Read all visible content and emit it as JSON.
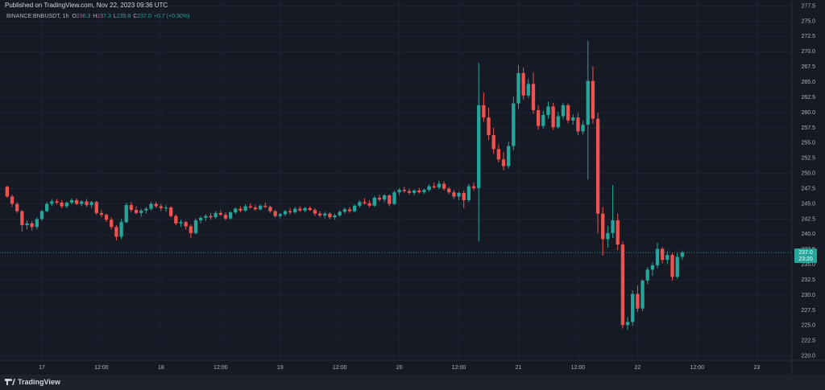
{
  "header": {
    "published": "Published on TradingView.com, Nov 22, 2023 09:36 UTC",
    "footer_brand": "TradingView"
  },
  "chart_data": {
    "type": "candlestick",
    "legend": {
      "symbol": "BINANCE:BNBUSDT, 1h",
      "items": [
        {
          "key": "O",
          "value": "236.3"
        },
        {
          "key": "H",
          "value": "237.3"
        },
        {
          "key": "L",
          "value": "235.8"
        },
        {
          "key": "C",
          "value": "237.0"
        }
      ],
      "change": "+0.7 (+0.30%)"
    },
    "up_color": "#26a69a",
    "down_color": "#ef5350",
    "grid": true,
    "ylim": [
      219.3,
      278.5
    ],
    "yticks": [
      {
        "value": 220,
        "label": "220.0"
      },
      222.5,
      {
        "value": 225,
        "label": "225.0"
      },
      227.5,
      {
        "value": 230,
        "label": "230.0"
      },
      232.5,
      {
        "value": 235,
        "label": "235.0"
      },
      237.5,
      {
        "value": 240,
        "label": "240.0"
      },
      242.5,
      {
        "value": 245,
        "label": "245.0"
      },
      247.5,
      {
        "value": 250,
        "label": "250.0"
      },
      252.5,
      {
        "value": 255,
        "label": "255.0"
      },
      257.5,
      {
        "value": 260,
        "label": "260.0"
      },
      262.5,
      {
        "value": 265,
        "label": "265.0"
      },
      267.5,
      {
        "value": 270,
        "label": "270.0"
      },
      272.5,
      {
        "value": 275,
        "label": "275.0"
      },
      277.5
    ],
    "xlim": [
      -1.44,
      158.1
    ],
    "xticks": [
      {
        "value": 7,
        "label": "17"
      },
      {
        "value": 19,
        "label": "12:00"
      },
      {
        "value": 31,
        "label": "18"
      },
      {
        "value": 43,
        "label": "12:00"
      },
      {
        "value": 55,
        "label": "19"
      },
      {
        "value": 67,
        "label": "12:00"
      },
      {
        "value": 79,
        "label": "20"
      },
      {
        "value": 91,
        "label": "12:00"
      },
      {
        "value": 103,
        "label": "21"
      },
      {
        "value": 115,
        "label": "12:00"
      },
      {
        "value": 127,
        "label": "22"
      },
      {
        "value": 139,
        "label": "12:00"
      },
      {
        "value": 151,
        "label": "23"
      }
    ],
    "last_price": {
      "value": 237,
      "label": "237.0"
    },
    "countdown": "23:20",
    "open": [
      247.8,
      246.2,
      245,
      243.8,
      241.5,
      241.8,
      241.2,
      242.5,
      243.8,
      245,
      245.4,
      245.2,
      244.6,
      245.2,
      245.6,
      245,
      245.4,
      244.8,
      245.3,
      243.5,
      243.2,
      242.4,
      241.2,
      239.6,
      242,
      244.8,
      244,
      243.5,
      243.9,
      244.2,
      245,
      244.6,
      244.3,
      244.4,
      243,
      241.8,
      242,
      241.3,
      240.2,
      242.3,
      242.7,
      243,
      242.8,
      243.5,
      243.2,
      242.6,
      243.6,
      244.2,
      243.9,
      244.6,
      244.4,
      244.1,
      244.7,
      244.5,
      243.8,
      243,
      243.3,
      243.8,
      243.6,
      244.2,
      243.9,
      244.3,
      244,
      243.4,
      243.1,
      243.4,
      242.8,
      243.1,
      243.7,
      244.1,
      243.8,
      244.7,
      245.3,
      245.1,
      244.7,
      246,
      245.7,
      246.4,
      245,
      246.9,
      247.3,
      247.1,
      246.8,
      247.2,
      246.9,
      247.3,
      247.9,
      247.7,
      248.3,
      247.5,
      246.9,
      246.2,
      246.8,
      245.6,
      247.9,
      247.6,
      261.2,
      259.2,
      256.3,
      254,
      252.3,
      251.2,
      254.5,
      261.5,
      266.5,
      262.8,
      264.7,
      260.4,
      257.8,
      259.6,
      261,
      257.6,
      259.4,
      261.2,
      258.7,
      259.2,
      256.9,
      258,
      265.2,
      259,
      243.4,
      239.2,
      240.2,
      242.3,
      238.3,
      225.1,
      225.6,
      230.2,
      227.8,
      232.4,
      234.2,
      234.9,
      237.6,
      235.8,
      236.6,
      233,
      236.3
    ],
    "high": [
      248,
      246.5,
      245.3,
      244,
      242.3,
      242.2,
      242.8,
      244,
      245.3,
      245.8,
      245.8,
      245.6,
      245.4,
      245.9,
      245.9,
      245.6,
      245.8,
      245.5,
      245.5,
      244,
      243.4,
      242.8,
      241.5,
      242.5,
      245.2,
      245.3,
      244.6,
      244.2,
      244.5,
      245.3,
      245.4,
      245,
      244.8,
      244.6,
      243.3,
      242.4,
      242.2,
      241.6,
      242.6,
      243,
      243.3,
      243.5,
      243.8,
      243.9,
      243.6,
      243.8,
      244.4,
      244.6,
      244.9,
      245.1,
      244.8,
      244.9,
      245.2,
      244.7,
      244,
      243.5,
      244,
      244.3,
      244.5,
      244.6,
      244.5,
      244.6,
      244.3,
      243.8,
      243.7,
      243.6,
      243.4,
      243.9,
      244.4,
      244.5,
      244.9,
      245.6,
      245.9,
      245.6,
      246.3,
      246.5,
      246.6,
      246.6,
      247.2,
      247.6,
      247.8,
      247.5,
      247.4,
      247.6,
      247.5,
      248.2,
      248.5,
      248.8,
      248.7,
      247.8,
      247.3,
      247,
      247.2,
      248.3,
      248.5,
      268.2,
      263.3,
      260.8,
      257.5,
      254.8,
      253.5,
      255.2,
      262.6,
      267.8,
      267.4,
      265.6,
      266.6,
      261.2,
      260.3,
      261.8,
      261.6,
      260.1,
      261.6,
      261.5,
      259.7,
      259.9,
      258.7,
      271.8,
      267.6,
      260,
      244.5,
      241.4,
      248.1,
      243.4,
      238.8,
      226.4,
      230.8,
      231.6,
      232.6,
      234.6,
      235.4,
      238.6,
      237.9,
      237.2,
      237,
      236.9,
      237.3
    ],
    "low": [
      246,
      244.5,
      243.5,
      240.5,
      240.8,
      240.6,
      240.8,
      242.2,
      243.6,
      244.6,
      244.9,
      244.3,
      244.3,
      244.9,
      244.8,
      244.6,
      244.5,
      244.3,
      243.2,
      242.8,
      242,
      240.8,
      239,
      239.2,
      241.8,
      243.6,
      243.3,
      242.9,
      243.4,
      243.9,
      244.3,
      243.8,
      243.7,
      242.8,
      241.5,
      241.2,
      240.8,
      239.4,
      240,
      241.8,
      242.2,
      242.4,
      242.6,
      243,
      242.3,
      242.4,
      243.3,
      243.6,
      243.7,
      244.2,
      243.9,
      243.9,
      244.3,
      243.5,
      242.7,
      242.6,
      243,
      243.3,
      243.4,
      243.7,
      243.6,
      243.8,
      243,
      242.8,
      242.6,
      242.5,
      242.4,
      242.9,
      243.4,
      243.5,
      243.6,
      244.4,
      244.9,
      244.4,
      244.5,
      245.4,
      245.3,
      244.6,
      244.8,
      246.4,
      246.8,
      246.5,
      246.4,
      246.7,
      246.6,
      247,
      247.5,
      247.4,
      247.2,
      246.6,
      245.8,
      245.6,
      244.3,
      245.3,
      247.2,
      238.8,
      258.5,
      255.5,
      253.2,
      251.8,
      250.5,
      250.8,
      253.8,
      260.6,
      262.1,
      262.4,
      259.8,
      257.2,
      257.4,
      259,
      257.1,
      257.3,
      258.9,
      258.2,
      258,
      256.3,
      256.4,
      249,
      258.2,
      240.2,
      236.5,
      237.8,
      239.4,
      237.4,
      224.5,
      224.3,
      225,
      227.2,
      227.4,
      231.8,
      233.2,
      234.4,
      235.2,
      235.1,
      232.4,
      232.7,
      235.8
    ],
    "close": [
      246.2,
      245,
      243.8,
      241.5,
      241.8,
      241.2,
      242.5,
      243.8,
      245,
      245.4,
      245.2,
      244.6,
      245.2,
      245.6,
      245,
      245.4,
      244.8,
      245.3,
      243.5,
      243.2,
      242.4,
      241.2,
      239.6,
      242,
      244.8,
      244,
      243.5,
      243.9,
      244.2,
      245,
      244.6,
      244.3,
      244.4,
      243,
      241.8,
      242,
      241.3,
      240.2,
      242.3,
      242.7,
      243,
      242.8,
      243.5,
      243.2,
      242.6,
      243.6,
      244.2,
      243.9,
      244.6,
      244.4,
      244.1,
      244.7,
      244.5,
      243.8,
      243,
      243.3,
      243.8,
      243.6,
      244.2,
      243.9,
      244.3,
      244,
      243.4,
      243.1,
      243.4,
      242.8,
      243.1,
      243.7,
      244.1,
      243.8,
      244.7,
      245.3,
      245.1,
      244.7,
      246,
      245.7,
      246.4,
      245,
      246.9,
      247.3,
      247.1,
      246.8,
      247.2,
      246.9,
      247.3,
      247.9,
      247.7,
      248.3,
      247.5,
      246.9,
      246.2,
      246.8,
      245.6,
      247.9,
      247.6,
      261.2,
      259.2,
      256.3,
      254,
      252.3,
      251.2,
      254.5,
      261.5,
      266.5,
      262.8,
      264.7,
      260.4,
      257.8,
      259.6,
      261,
      257.6,
      259.4,
      261.2,
      258.7,
      259.2,
      256.9,
      258,
      265.2,
      259,
      243.4,
      239.2,
      240.2,
      242.3,
      238.3,
      225.1,
      225.6,
      230.2,
      227.8,
      232.4,
      234.2,
      234.9,
      237.6,
      235.8,
      236.6,
      233,
      236.3,
      237
    ]
  }
}
